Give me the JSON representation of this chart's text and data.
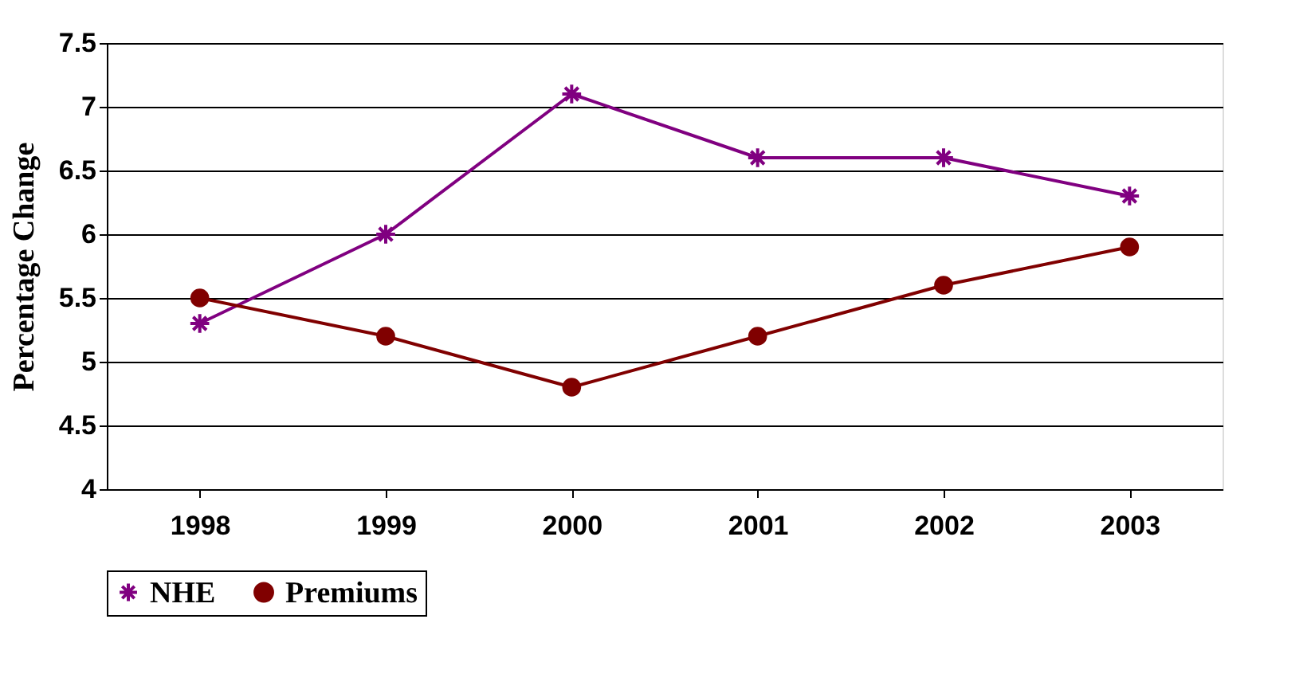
{
  "chart_data": {
    "type": "line",
    "ylabel": "Percentage Change",
    "categories": [
      "1998",
      "1999",
      "2000",
      "2001",
      "2002",
      "2003"
    ],
    "series": [
      {
        "name": "NHE",
        "color": "#800080",
        "marker": "cross",
        "values": [
          5.3,
          6.0,
          7.1,
          6.6,
          6.6,
          6.3
        ]
      },
      {
        "name": "Premiums",
        "color": "#800000",
        "marker": "circle",
        "values": [
          5.5,
          5.2,
          4.8,
          5.2,
          5.6,
          5.9
        ]
      }
    ],
    "ylim": [
      4,
      7.5
    ],
    "yticks": [
      4,
      4.5,
      5,
      5.5,
      6,
      6.5,
      7,
      7.5
    ],
    "grid": "y",
    "legend": "bottom",
    "line_style": "solid"
  }
}
